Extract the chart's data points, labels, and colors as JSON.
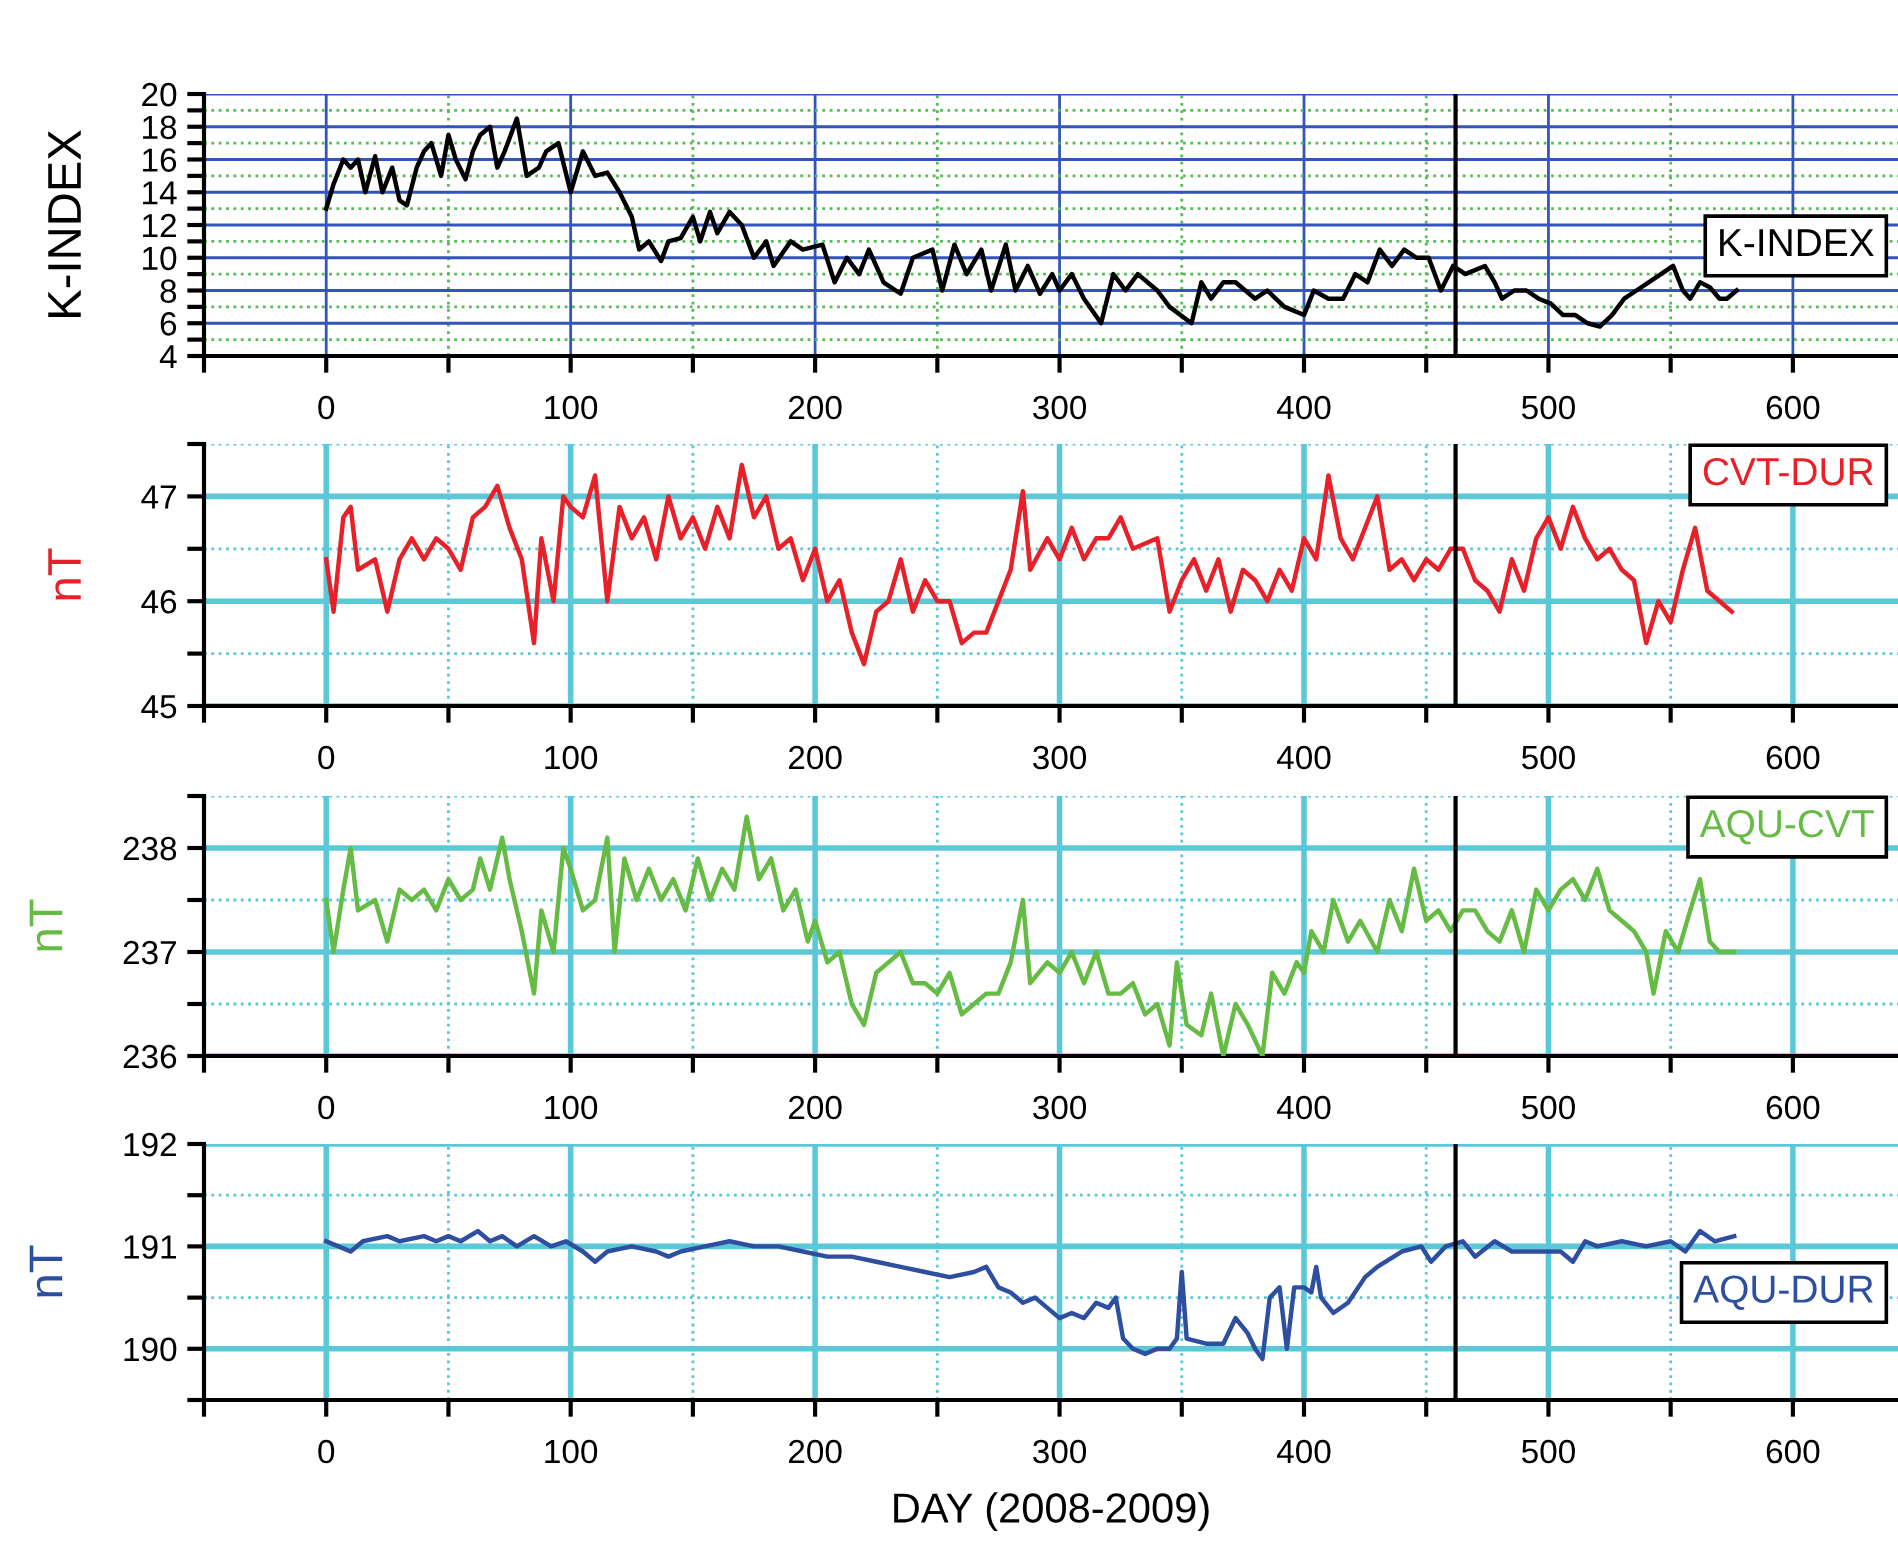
{
  "chart_data": [
    {
      "type": "line",
      "ylabel": "K-INDEX",
      "legend": "right",
      "grid": true,
      "line_style": "solid",
      "xlim": [
        -50,
        643
      ],
      "xticks": [
        {
          "value": -50,
          "label": null
        },
        0,
        {
          "value": 50,
          "label": null
        },
        100,
        {
          "value": 150,
          "label": null
        },
        200,
        {
          "value": 250,
          "label": null
        },
        300,
        {
          "value": 350,
          "label": null
        },
        400,
        {
          "value": 450,
          "label": null
        },
        500,
        {
          "value": 550,
          "label": null
        },
        600
      ],
      "ylim": [
        4,
        20
      ],
      "yticks": [
        4,
        {
          "value": 5,
          "label": null
        },
        6,
        {
          "value": 7,
          "label": null
        },
        8,
        {
          "value": 9,
          "label": null
        },
        10,
        {
          "value": 11,
          "label": null
        },
        12,
        {
          "value": 13,
          "label": null
        },
        14,
        {
          "value": 15,
          "label": null
        },
        16,
        {
          "value": 17,
          "label": null
        },
        18,
        {
          "value": 19,
          "label": null
        },
        20
      ],
      "ref_lines": [
        {
          "axis": "x",
          "value": 462,
          "color": "#000000"
        }
      ],
      "series": [
        {
          "name": "K-INDEX",
          "color": "#000000",
          "x": [
            0,
            3,
            7,
            10,
            13,
            16,
            20,
            23,
            27,
            30,
            33,
            37,
            40,
            43,
            47,
            50,
            53,
            57,
            60,
            63,
            67,
            70,
            73,
            78,
            82,
            87,
            90,
            95,
            100,
            105,
            110,
            115,
            120,
            125,
            128,
            132,
            137,
            140,
            145,
            150,
            153,
            157,
            160,
            165,
            170,
            175,
            180,
            183,
            190,
            195,
            203,
            208,
            213,
            218,
            222,
            228,
            235,
            240,
            248,
            252,
            257,
            262,
            268,
            272,
            278,
            282,
            287,
            292,
            297,
            300,
            305,
            310,
            317,
            322,
            327,
            332,
            340,
            345,
            354,
            358,
            362,
            367,
            372,
            380,
            385,
            392,
            400,
            404,
            410,
            416,
            421,
            426,
            431,
            436,
            441,
            446,
            451,
            456,
            461,
            466,
            474,
            478,
            481,
            486,
            491,
            496,
            501,
            506,
            511,
            516,
            521,
            526,
            531,
            536,
            541,
            546,
            551,
            555,
            558,
            562,
            566,
            570,
            573,
            577
          ],
          "values": [
            13,
            14.5,
            16,
            15.5,
            16,
            14,
            16.2,
            14,
            15.5,
            13.5,
            13.2,
            15.5,
            16.5,
            17,
            15,
            17.5,
            16,
            14.8,
            16.5,
            17.5,
            18,
            15.5,
            16.5,
            18.5,
            15,
            15.5,
            16.5,
            17,
            14,
            16.5,
            15,
            15.2,
            14,
            12.5,
            10.5,
            11,
            9.8,
            11,
            11.2,
            12.5,
            11,
            12.8,
            11.5,
            12.8,
            12,
            10,
            11,
            9.5,
            11,
            10.5,
            10.8,
            8.5,
            10,
            9,
            10.5,
            8.5,
            7.8,
            10,
            10.5,
            8,
            10.8,
            9,
            10.5,
            8,
            10.8,
            8,
            9.5,
            7.8,
            9,
            8,
            9,
            7.5,
            6,
            9,
            8,
            9,
            8,
            7,
            6,
            8.5,
            7.5,
            8.5,
            8.5,
            7.5,
            8,
            7,
            6.5,
            8,
            7.5,
            7.5,
            9,
            8.5,
            10.5,
            9.5,
            10.5,
            10,
            10,
            8,
            9.5,
            9,
            9.5,
            8.5,
            7.5,
            8,
            8,
            7.5,
            7.2,
            6.5,
            6.5,
            6,
            5.8,
            6.5,
            7.5,
            8,
            8.5,
            9,
            9.5,
            8,
            7.5,
            8.5,
            8.2,
            7.5,
            7.5,
            8
          ]
        }
      ]
    },
    {
      "type": "line",
      "ylabel": "nT",
      "legend": "top right",
      "grid": true,
      "line_style": "solid",
      "xlim": [
        -50,
        643
      ],
      "xticks": [
        {
          "value": -50,
          "label": null
        },
        0,
        {
          "value": 50,
          "label": null
        },
        100,
        {
          "value": 150,
          "label": null
        },
        200,
        {
          "value": 250,
          "label": null
        },
        300,
        {
          "value": 350,
          "label": null
        },
        400,
        {
          "value": 450,
          "label": null
        },
        500,
        {
          "value": 550,
          "label": null
        },
        600
      ],
      "ylim": [
        45,
        47.5
      ],
      "yticks": [
        45,
        {
          "value": 45.5,
          "label": null
        },
        46,
        {
          "value": 46.5,
          "label": null
        },
        47,
        {
          "value": 47.5,
          "label": null
        }
      ],
      "ref_lines": [
        {
          "axis": "x",
          "value": 462,
          "color": "#000000"
        }
      ],
      "series": [
        {
          "name": "CVT-DUR",
          "color": "#e8202a",
          "x": [
            0,
            3,
            7,
            10,
            13,
            20,
            25,
            30,
            35,
            40,
            45,
            50,
            55,
            60,
            65,
            70,
            75,
            80,
            85,
            88,
            93,
            97,
            100,
            105,
            110,
            115,
            120,
            125,
            130,
            135,
            140,
            145,
            150,
            155,
            160,
            165,
            170,
            175,
            180,
            185,
            190,
            195,
            200,
            205,
            210,
            215,
            220,
            225,
            230,
            235,
            240,
            245,
            250,
            255,
            260,
            265,
            270,
            275,
            280,
            285,
            288,
            295,
            300,
            305,
            310,
            315,
            320,
            325,
            330,
            340,
            345,
            350,
            355,
            360,
            365,
            370,
            375,
            380,
            385,
            390,
            395,
            400,
            405,
            410,
            415,
            420,
            430,
            435,
            440,
            445,
            450,
            455,
            460,
            465,
            470,
            475,
            480,
            485,
            490,
            495,
            500,
            505,
            510,
            515,
            520,
            525,
            530,
            535,
            540,
            545,
            550,
            555,
            560,
            565,
            570,
            575
          ],
          "values": [
            46.4,
            45.9,
            46.8,
            46.9,
            46.3,
            46.4,
            45.9,
            46.4,
            46.6,
            46.4,
            46.6,
            46.5,
            46.3,
            46.8,
            46.9,
            47.1,
            46.7,
            46.4,
            45.6,
            46.6,
            46.0,
            47.0,
            46.9,
            46.8,
            47.2,
            46.0,
            46.9,
            46.6,
            46.8,
            46.4,
            47.0,
            46.6,
            46.8,
            46.5,
            46.9,
            46.6,
            47.3,
            46.8,
            47.0,
            46.5,
            46.6,
            46.2,
            46.5,
            46.0,
            46.2,
            45.7,
            45.4,
            45.9,
            46.0,
            46.4,
            45.9,
            46.2,
            46.0,
            46.0,
            45.6,
            45.7,
            45.7,
            46.0,
            46.3,
            47.05,
            46.3,
            46.6,
            46.4,
            46.7,
            46.4,
            46.6,
            46.6,
            46.8,
            46.5,
            46.6,
            45.9,
            46.2,
            46.4,
            46.1,
            46.4,
            45.9,
            46.3,
            46.2,
            46.0,
            46.3,
            46.1,
            46.6,
            46.4,
            47.2,
            46.6,
            46.4,
            47.0,
            46.3,
            46.4,
            46.2,
            46.4,
            46.3,
            46.5,
            46.5,
            46.2,
            46.1,
            45.9,
            46.4,
            46.1,
            46.6,
            46.8,
            46.5,
            46.9,
            46.6,
            46.4,
            46.5,
            46.3,
            46.2,
            45.6,
            46.0,
            45.8,
            46.3,
            46.7,
            46.1,
            46.0,
            45.9
          ]
        }
      ]
    },
    {
      "type": "line",
      "ylabel": "nT",
      "legend": "top right",
      "grid": true,
      "line_style": "solid",
      "xlim": [
        -50,
        643
      ],
      "xticks": [
        {
          "value": -50,
          "label": null
        },
        0,
        {
          "value": 50,
          "label": null
        },
        100,
        {
          "value": 150,
          "label": null
        },
        200,
        {
          "value": 250,
          "label": null
        },
        300,
        {
          "value": 350,
          "label": null
        },
        400,
        {
          "value": 450,
          "label": null
        },
        500,
        {
          "value": 550,
          "label": null
        },
        600
      ],
      "ylim": [
        236,
        238.5
      ],
      "yticks": [
        236,
        {
          "value": 236.5,
          "label": null
        },
        237,
        {
          "value": 237.5,
          "label": null
        },
        238,
        {
          "value": 238.5,
          "label": null
        }
      ],
      "ref_lines": [
        {
          "axis": "x",
          "value": 462,
          "color": "#000000"
        }
      ],
      "series": [
        {
          "name": "AQU-CVT",
          "color": "#66bb44",
          "x": [
            0,
            3,
            7,
            10,
            13,
            20,
            25,
            30,
            35,
            40,
            45,
            50,
            55,
            60,
            63,
            67,
            72,
            75,
            80,
            85,
            88,
            93,
            97,
            100,
            105,
            110,
            115,
            118,
            122,
            127,
            132,
            137,
            142,
            147,
            152,
            157,
            162,
            167,
            172,
            177,
            182,
            187,
            192,
            197,
            200,
            205,
            210,
            215,
            220,
            225,
            230,
            235,
            240,
            245,
            250,
            255,
            260,
            265,
            270,
            275,
            280,
            285,
            288,
            295,
            300,
            305,
            310,
            315,
            320,
            325,
            330,
            335,
            340,
            345,
            348,
            352,
            358,
            362,
            367,
            372,
            377,
            383,
            387,
            392,
            397,
            400,
            403,
            408,
            412,
            418,
            423,
            430,
            435,
            440,
            445,
            450,
            455,
            460,
            465,
            470,
            475,
            480,
            485,
            490,
            495,
            500,
            505,
            510,
            515,
            520,
            525,
            530,
            535,
            540,
            543,
            548,
            553,
            558,
            562,
            566,
            570,
            576
          ],
          "values": [
            237.5,
            237.0,
            237.6,
            238.0,
            237.4,
            237.5,
            237.1,
            237.6,
            237.5,
            237.6,
            237.4,
            237.7,
            237.5,
            237.6,
            237.9,
            237.6,
            238.1,
            237.7,
            237.2,
            236.6,
            237.4,
            237.0,
            238.0,
            237.8,
            237.4,
            237.5,
            238.1,
            237.0,
            237.9,
            237.5,
            237.8,
            237.5,
            237.7,
            237.4,
            237.9,
            237.5,
            237.8,
            237.6,
            238.3,
            237.7,
            237.9,
            237.4,
            237.6,
            237.1,
            237.3,
            236.9,
            237.0,
            236.5,
            236.3,
            236.8,
            236.9,
            237.0,
            236.7,
            236.7,
            236.6,
            236.8,
            236.4,
            236.5,
            236.6,
            236.6,
            236.9,
            237.5,
            236.7,
            236.9,
            236.8,
            237.0,
            236.7,
            237.0,
            236.6,
            236.6,
            236.7,
            236.4,
            236.5,
            236.1,
            236.9,
            236.3,
            236.2,
            236.6,
            236.0,
            236.5,
            236.3,
            236.0,
            236.8,
            236.6,
            236.9,
            236.8,
            237.2,
            237.0,
            237.5,
            237.1,
            237.3,
            237.0,
            237.5,
            237.2,
            237.8,
            237.3,
            237.4,
            237.2,
            237.4,
            237.4,
            237.2,
            237.1,
            237.4,
            237.0,
            237.6,
            237.4,
            237.6,
            237.7,
            237.5,
            237.8,
            237.4,
            237.3,
            237.2,
            237.0,
            236.6,
            237.2,
            237.0,
            237.4,
            237.7,
            237.1,
            237.0,
            237.0
          ]
        }
      ]
    },
    {
      "type": "line",
      "ylabel": "nT",
      "xlabel": "DAY (2008-2009)",
      "legend": "right",
      "grid": true,
      "line_style": "solid",
      "xlim": [
        -50,
        643
      ],
      "xticks": [
        {
          "value": -50,
          "label": null
        },
        0,
        {
          "value": 50,
          "label": null
        },
        100,
        {
          "value": 150,
          "label": null
        },
        200,
        {
          "value": 250,
          "label": null
        },
        300,
        {
          "value": 350,
          "label": null
        },
        400,
        {
          "value": 450,
          "label": null
        },
        500,
        {
          "value": 550,
          "label": null
        },
        600
      ],
      "ylim": [
        189.5,
        192
      ],
      "yticks": [
        {
          "value": 189.5,
          "label": null
        },
        190,
        {
          "value": 190.5,
          "label": null
        },
        191,
        {
          "value": 191.5,
          "label": null
        },
        192
      ],
      "ref_lines": [
        {
          "axis": "x",
          "value": 462,
          "color": "#000000"
        }
      ],
      "series": [
        {
          "name": "AQU-DUR",
          "color": "#2e4fa0",
          "x": [
            0,
            5,
            10,
            15,
            25,
            30,
            40,
            45,
            50,
            55,
            62,
            67,
            72,
            78,
            85,
            92,
            98,
            105,
            110,
            115,
            125,
            135,
            140,
            145,
            155,
            165,
            175,
            185,
            195,
            205,
            215,
            225,
            235,
            245,
            255,
            265,
            270,
            275,
            280,
            285,
            290,
            295,
            300,
            305,
            310,
            315,
            320,
            323,
            326,
            330,
            335,
            340,
            345,
            348,
            350,
            352,
            360,
            367,
            372,
            377,
            380,
            383,
            386,
            390,
            393,
            396,
            400,
            403,
            405,
            407,
            412,
            418,
            425,
            430,
            440,
            448,
            452,
            458,
            465,
            470,
            478,
            485,
            495,
            505,
            510,
            515,
            520,
            530,
            540,
            550,
            556,
            562,
            568,
            576
          ],
          "values": [
            191.05,
            191.0,
            190.95,
            191.05,
            191.1,
            191.05,
            191.1,
            191.05,
            191.1,
            191.05,
            191.15,
            191.05,
            191.1,
            191.0,
            191.1,
            191.0,
            191.05,
            190.95,
            190.85,
            190.95,
            191.0,
            190.95,
            190.9,
            190.95,
            191.0,
            191.05,
            191.0,
            191.0,
            190.95,
            190.9,
            190.9,
            190.85,
            190.8,
            190.75,
            190.7,
            190.75,
            190.8,
            190.6,
            190.55,
            190.45,
            190.5,
            190.4,
            190.3,
            190.35,
            190.3,
            190.45,
            190.4,
            190.5,
            190.1,
            190.0,
            189.95,
            190.0,
            190.0,
            190.1,
            190.75,
            190.1,
            190.05,
            190.05,
            190.3,
            190.15,
            190.0,
            189.9,
            190.5,
            190.6,
            190.0,
            190.6,
            190.6,
            190.55,
            190.8,
            190.5,
            190.35,
            190.45,
            190.7,
            190.8,
            190.95,
            191.0,
            190.85,
            191.0,
            191.05,
            190.9,
            191.05,
            190.95,
            190.95,
            190.95,
            190.85,
            191.05,
            191.0,
            191.05,
            191.0,
            191.05,
            190.95,
            191.15,
            191.05,
            191.1
          ]
        }
      ]
    }
  ]
}
